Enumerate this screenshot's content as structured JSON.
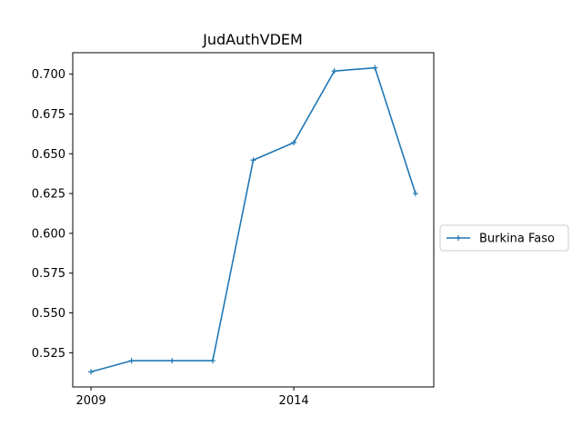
{
  "chart_data": {
    "type": "line",
    "title": "JudAuthVDEM",
    "xlabel": "",
    "ylabel": "",
    "x": [
      2009,
      2010,
      2011,
      2012,
      2013,
      2014,
      2015,
      2016,
      2017
    ],
    "series": [
      {
        "name": "Burkina Faso",
        "color": "#1f77b4",
        "marker": "plus",
        "values": [
          0.513,
          0.52,
          0.52,
          0.52,
          0.646,
          0.657,
          0.702,
          0.704,
          0.625
        ]
      }
    ],
    "xlim": [
      2008.55,
      2017.45
    ],
    "ylim": [
      0.5035,
      0.7135
    ],
    "x_ticks": [
      2009,
      2014
    ],
    "x_tick_labels": [
      "2009",
      "2014"
    ],
    "y_ticks": [
      0.525,
      0.55,
      0.575,
      0.6,
      0.625,
      0.65,
      0.675,
      0.7
    ],
    "y_tick_labels": [
      "0.525",
      "0.550",
      "0.575",
      "0.600",
      "0.625",
      "0.650",
      "0.675",
      "0.700"
    ],
    "grid": false,
    "legend_position": "right-outside"
  }
}
